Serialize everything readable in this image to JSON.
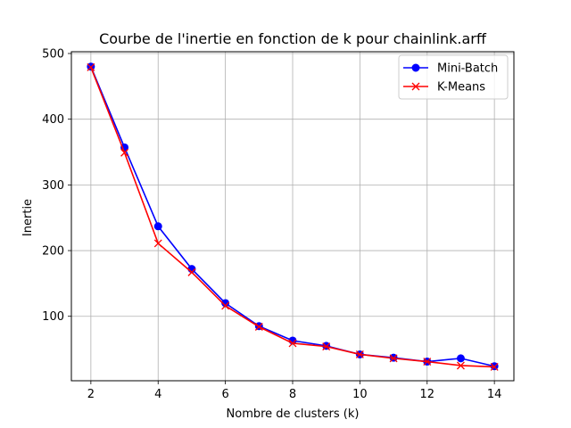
{
  "chart_data": {
    "type": "line",
    "title": "Courbe de l'inertie en fonction de k pour chainlink.arff",
    "xlabel": "Nombre de clusters (k)",
    "ylabel": "Inertie",
    "x": [
      2,
      3,
      4,
      5,
      6,
      7,
      8,
      9,
      10,
      11,
      12,
      13,
      14
    ],
    "xlim": [
      1.42,
      14.58
    ],
    "ylim": [
      0,
      500
    ],
    "xticks": [
      2,
      4,
      6,
      8,
      10,
      12,
      14
    ],
    "yticks": [
      100,
      200,
      300,
      400,
      500
    ],
    "grid": true,
    "legend_position": "top-right",
    "series": [
      {
        "name": "Mini-Batch",
        "color": "#0000ff",
        "marker": "circle",
        "values": [
          480,
          357,
          237,
          172,
          120,
          85,
          63,
          55,
          42,
          37,
          31,
          36,
          24
        ]
      },
      {
        "name": "K-Means",
        "color": "#ff0000",
        "marker": "x",
        "values": [
          479,
          349,
          211,
          167,
          116,
          84,
          59,
          54,
          42,
          36,
          31,
          25,
          23
        ]
      }
    ]
  }
}
